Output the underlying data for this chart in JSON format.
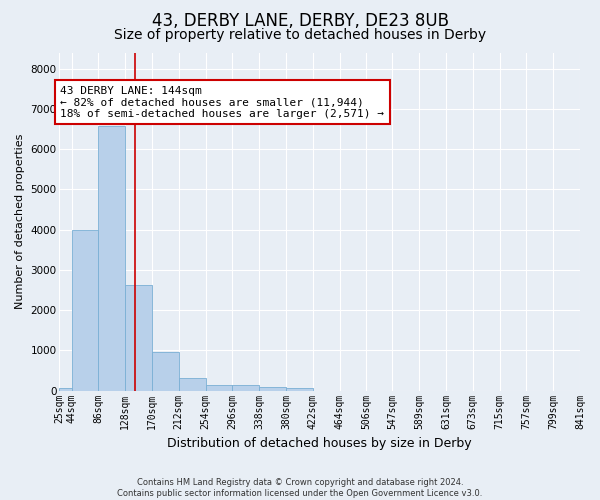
{
  "title1": "43, DERBY LANE, DERBY, DE23 8UB",
  "title2": "Size of property relative to detached houses in Derby",
  "xlabel": "Distribution of detached houses by size in Derby",
  "ylabel": "Number of detached properties",
  "footer1": "Contains HM Land Registry data © Crown copyright and database right 2024.",
  "footer2": "Contains public sector information licensed under the Open Government Licence v3.0.",
  "bin_edges": [
    25,
    44,
    86,
    128,
    170,
    212,
    254,
    296,
    338,
    380,
    422,
    464,
    506,
    547,
    589,
    631,
    673,
    715,
    757,
    799,
    841
  ],
  "bar_heights": [
    70,
    3980,
    6570,
    2620,
    960,
    320,
    140,
    130,
    90,
    70,
    0,
    0,
    0,
    0,
    0,
    0,
    0,
    0,
    0,
    0
  ],
  "bar_color": "#b8d0ea",
  "bar_edge_color": "#7aafd4",
  "vline_x": 144,
  "vline_color": "#cc0000",
  "annotation_line1": "43 DERBY LANE: 144sqm",
  "annotation_line2": "← 82% of detached houses are smaller (11,944)",
  "annotation_line3": "18% of semi-detached houses are larger (2,571) →",
  "annotation_box_color": "#ffffff",
  "annotation_box_edge_color": "#cc0000",
  "ylim": [
    0,
    8400
  ],
  "yticks": [
    0,
    1000,
    2000,
    3000,
    4000,
    5000,
    6000,
    7000,
    8000
  ],
  "tick_labels": [
    "25sqm",
    "44sqm",
    "86sqm",
    "128sqm",
    "170sqm",
    "212sqm",
    "254sqm",
    "296sqm",
    "338sqm",
    "380sqm",
    "422sqm",
    "464sqm",
    "506sqm",
    "547sqm",
    "589sqm",
    "631sqm",
    "673sqm",
    "715sqm",
    "757sqm",
    "799sqm",
    "841sqm"
  ],
  "bg_color": "#e8eef5",
  "plot_bg_color": "#e8eef5",
  "grid_color": "#ffffff",
  "title1_fontsize": 12,
  "title2_fontsize": 10,
  "xlabel_fontsize": 9,
  "ylabel_fontsize": 8,
  "annotation_fontsize": 8,
  "tick_fontsize": 7,
  "ytick_fontsize": 7.5
}
